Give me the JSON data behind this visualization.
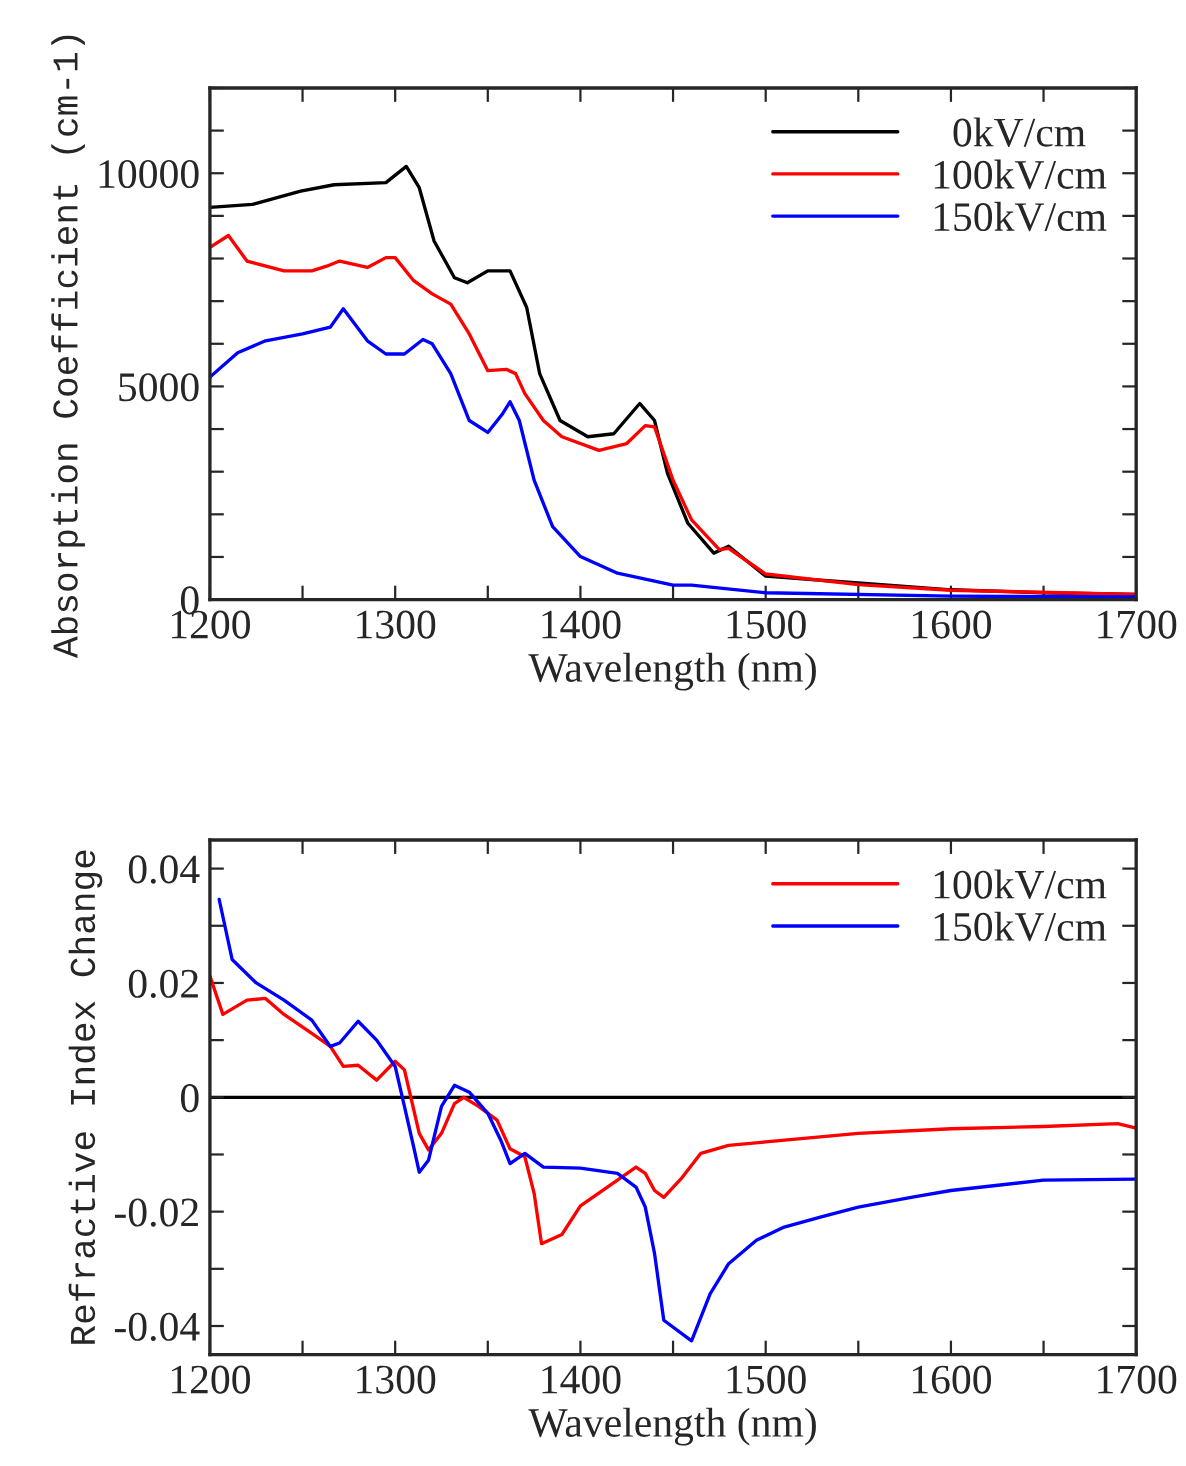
{
  "chart_data": [
    {
      "type": "line",
      "xlabel": "Wavelength (nm)",
      "ylabel": "Absorption Coefficient (cm-1)",
      "xlim": [
        1200,
        1700
      ],
      "ylim": [
        0,
        12000
      ],
      "xticks": [
        1200,
        {
          "value": 1250,
          "label": null
        },
        1300,
        {
          "value": 1350,
          "label": null
        },
        1400,
        {
          "value": 1450,
          "label": null
        },
        1500,
        {
          "value": 1550,
          "label": null
        },
        1600,
        {
          "value": 1650,
          "label": null
        },
        1700
      ],
      "yticks": [
        0,
        {
          "value": 1000,
          "label": null
        },
        {
          "value": 2000,
          "label": null
        },
        {
          "value": 3000,
          "label": null
        },
        {
          "value": 4000,
          "label": null
        },
        5000,
        {
          "value": 6000,
          "label": null
        },
        {
          "value": 7000,
          "label": null
        },
        {
          "value": 8000,
          "label": null
        },
        {
          "value": 9000,
          "label": null
        },
        10000,
        {
          "value": 11000,
          "label": null
        },
        {
          "value": 12000,
          "label": null
        }
      ],
      "grid": false,
      "legend": "top right",
      "marker": "none",
      "line_style": "solid",
      "series": [
        {
          "name": "  0kV/cm",
          "color": "#000000",
          "x": [
            1200,
            1223,
            1249,
            1267,
            1295,
            1306,
            1313,
            1321,
            1332,
            1339,
            1350,
            1362,
            1371,
            1378,
            1389,
            1404,
            1418,
            1432,
            1440,
            1447,
            1458,
            1472,
            1480,
            1500,
            1550,
            1600,
            1650,
            1700
          ],
          "values": [
            9200,
            9270,
            9580,
            9730,
            9780,
            10160,
            9660,
            8410,
            7550,
            7430,
            7710,
            7710,
            6850,
            5300,
            4200,
            3820,
            3890,
            4600,
            4200,
            2960,
            1790,
            1090,
            1250,
            550,
            390,
            230,
            160,
            120
          ]
        },
        {
          "name": "100kV/cm",
          "color": "#ff0000",
          "x": [
            1200,
            1210,
            1220,
            1240,
            1255,
            1263,
            1270,
            1285,
            1295,
            1300,
            1310,
            1320,
            1330,
            1340,
            1350,
            1360,
            1365,
            1370,
            1380,
            1390,
            1410,
            1425,
            1435,
            1440,
            1450,
            1460,
            1475,
            1480,
            1500,
            1550,
            1600,
            1700
          ],
          "values": [
            8260,
            8540,
            7940,
            7710,
            7710,
            7820,
            7940,
            7790,
            8020,
            8020,
            7480,
            7170,
            6930,
            6230,
            5370,
            5400,
            5300,
            4830,
            4200,
            3820,
            3500,
            3660,
            4080,
            4050,
            2800,
            1870,
            1170,
            1200,
            600,
            350,
            220,
            120
          ]
        },
        {
          "name": "150kV/cm",
          "color": "#0000ff",
          "x": [
            1200,
            1215,
            1230,
            1250,
            1265,
            1272,
            1285,
            1295,
            1305,
            1315,
            1320,
            1330,
            1340,
            1350,
            1358,
            1362,
            1367,
            1375,
            1385,
            1400,
            1420,
            1450,
            1460,
            1500,
            1600,
            1700
          ],
          "values": [
            5220,
            5790,
            6070,
            6230,
            6390,
            6820,
            6070,
            5760,
            5760,
            6100,
            6000,
            5300,
            4200,
            3920,
            4360,
            4640,
            4200,
            2800,
            1710,
            1010,
            620,
            340,
            340,
            160,
            80,
            60
          ]
        }
      ]
    },
    {
      "type": "line",
      "xlabel": "Wavelength (nm)",
      "ylabel": "Refractive Index Change",
      "xlim": [
        1200,
        1700
      ],
      "ylim": [
        -0.045,
        0.045
      ],
      "xticks": [
        1200,
        {
          "value": 1250,
          "label": null
        },
        1300,
        {
          "value": 1350,
          "label": null
        },
        1400,
        {
          "value": 1450,
          "label": null
        },
        1500,
        {
          "value": 1550,
          "label": null
        },
        1600,
        {
          "value": 1650,
          "label": null
        },
        1700
      ],
      "yticks": [
        {
          "value": -0.04,
          "label": "-0.04"
        },
        {
          "value": -0.03,
          "label": null
        },
        {
          "value": -0.02,
          "label": "-0.02"
        },
        {
          "value": -0.01,
          "label": null
        },
        {
          "value": 0,
          "label": "0"
        },
        {
          "value": 0.01,
          "label": null
        },
        {
          "value": 0.02,
          "label": "0.02"
        },
        {
          "value": 0.03,
          "label": null
        },
        {
          "value": 0.04,
          "label": "0.04"
        }
      ],
      "grid": false,
      "legend": "top right",
      "marker": "none",
      "line_style": "solid",
      "ref_lines": [
        {
          "axis": "y",
          "value": 0,
          "label": null,
          "color": "#000000"
        }
      ],
      "series": [
        {
          "name": "100kV/cm",
          "color": "#ff0000",
          "x": [
            1200,
            1207,
            1220,
            1230,
            1240,
            1255,
            1265,
            1272,
            1280,
            1290,
            1300,
            1305,
            1313,
            1318,
            1325,
            1332,
            1337,
            1345,
            1355,
            1362,
            1370,
            1375,
            1379,
            1390,
            1400,
            1420,
            1430,
            1435,
            1440,
            1445,
            1455,
            1465,
            1480,
            1500,
            1550,
            1600,
            1650,
            1690,
            1700
          ],
          "values": [
            0.0212,
            0.0145,
            0.017,
            0.0173,
            0.0145,
            0.0112,
            0.0089,
            0.0054,
            0.0056,
            0.003,
            0.0063,
            0.0048,
            -0.0063,
            -0.0092,
            -0.0063,
            -0.0011,
            0.0,
            -0.0016,
            -0.004,
            -0.009,
            -0.0104,
            -0.0168,
            -0.0256,
            -0.024,
            -0.019,
            -0.0145,
            -0.0122,
            -0.0133,
            -0.0163,
            -0.0175,
            -0.014,
            -0.0098,
            -0.0084,
            -0.0078,
            -0.0063,
            -0.0055,
            -0.0051,
            -0.0046,
            -0.0054
          ]
        },
        {
          "name": "150kV/cm",
          "color": "#0000ff",
          "x": [
            1205,
            1212,
            1225,
            1240,
            1255,
            1265,
            1270,
            1280,
            1290,
            1300,
            1305,
            1310,
            1313,
            1318,
            1325,
            1332,
            1340,
            1350,
            1357,
            1362,
            1370,
            1380,
            1400,
            1420,
            1430,
            1435,
            1440,
            1445,
            1449,
            1455,
            1460,
            1470,
            1480,
            1495,
            1510,
            1530,
            1550,
            1580,
            1600,
            1650,
            1700
          ],
          "values": [
            0.0346,
            0.0241,
            0.02,
            0.017,
            0.0135,
            0.0089,
            0.0095,
            0.0133,
            0.01,
            0.0054,
            -0.0016,
            -0.0087,
            -0.0131,
            -0.011,
            -0.0016,
            0.0021,
            0.0009,
            -0.0028,
            -0.0075,
            -0.0116,
            -0.0098,
            -0.0122,
            -0.0124,
            -0.0133,
            -0.0157,
            -0.0192,
            -0.0273,
            -0.039,
            null,
            null,
            -0.0426,
            -0.0344,
            -0.0291,
            -0.025,
            -0.0227,
            -0.0209,
            -0.0192,
            -0.0174,
            -0.0163,
            -0.0145,
            -0.0143
          ]
        }
      ]
    }
  ]
}
